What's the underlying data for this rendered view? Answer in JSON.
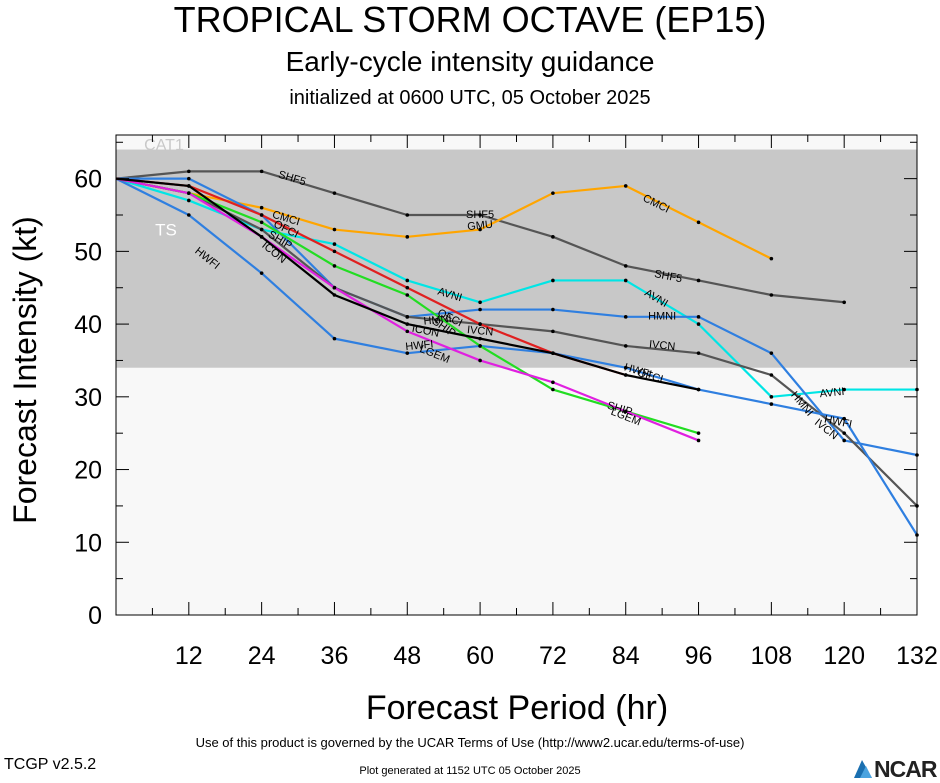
{
  "header": {
    "title": "TROPICAL STORM OCTAVE (EP15)",
    "subtitle": "Early-cycle intensity guidance",
    "init": "initialized at 0600 UTC, 05 October 2025"
  },
  "footer": {
    "terms": "Use of this product is governed by the UCAR Terms of Use (http://www2.ucar.edu/terms-of-use)",
    "version": "TCGP v2.5.2",
    "generated": "Plot generated at 1152 UTC   05 October 2025",
    "logo": "NCAR"
  },
  "colors": {
    "ts_band": "#c8c8c8",
    "plot_bg": "#f8f8f8",
    "CMCI": "#ffa500",
    "SHF5": "#555555",
    "AVNI": "#00e5e5",
    "HMNI": "#2f7fe0",
    "IVCN": "#555555",
    "HWFI": "#2f7fe0",
    "SHIP": "#22dd22",
    "LGEM": "#e020e0",
    "OFCI": "#e02020",
    "ICON": "#000000"
  },
  "chart_data": {
    "type": "line",
    "title": "TROPICAL STORM OCTAVE (EP15)",
    "xlabel": "Forecast Period (hr)",
    "ylabel": "Forecast Intensity (kt)",
    "xlim": [
      0,
      132
    ],
    "ylim": [
      0,
      66
    ],
    "xticks": [
      12,
      24,
      36,
      48,
      60,
      72,
      84,
      96,
      108,
      120,
      132
    ],
    "yticks": [
      0,
      10,
      20,
      30,
      40,
      50,
      60
    ],
    "bands": [
      {
        "label": "TS",
        "from": 34,
        "to": 64
      },
      {
        "label": "CAT1",
        "from": 64,
        "to": 66
      }
    ],
    "series": [
      {
        "name": "SHF5",
        "x": [
          0,
          12,
          24,
          36,
          48,
          60,
          72,
          84,
          96,
          108,
          120
        ],
        "y": [
          60,
          61,
          61,
          58,
          55,
          55,
          52,
          48,
          46,
          44,
          43
        ]
      },
      {
        "name": "CMCI",
        "x": [
          0,
          12,
          24,
          36,
          48,
          60,
          72,
          84,
          96,
          108
        ],
        "y": [
          60,
          58,
          56,
          53,
          52,
          53,
          58,
          59,
          54,
          49
        ]
      },
      {
        "name": "AVNI",
        "x": [
          0,
          12,
          24,
          36,
          48,
          60,
          72,
          84,
          96,
          108,
          120,
          132
        ],
        "y": [
          60,
          57,
          53,
          51,
          46,
          43,
          46,
          46,
          40,
          30,
          31,
          31
        ]
      },
      {
        "name": "HMNI",
        "x": [
          0,
          12,
          24,
          36,
          48,
          60,
          72,
          84,
          96,
          108,
          120,
          132
        ],
        "y": [
          60,
          60,
          55,
          45,
          41,
          42,
          42,
          41,
          41,
          36,
          24,
          22
        ]
      },
      {
        "name": "IVCN",
        "x": [
          0,
          12,
          24,
          36,
          48,
          60,
          72,
          84,
          96,
          108,
          120,
          132
        ],
        "y": [
          60,
          58,
          53,
          45,
          41,
          40,
          39,
          37,
          36,
          33,
          25,
          15
        ]
      },
      {
        "name": "HWFI",
        "x": [
          0,
          12,
          24,
          36,
          48,
          60,
          72,
          84,
          96,
          108,
          120,
          132
        ],
        "y": [
          60,
          55,
          47,
          38,
          36,
          37,
          36,
          34,
          31,
          29,
          27,
          11
        ]
      },
      {
        "name": "SHIP",
        "x": [
          0,
          12,
          24,
          36,
          48,
          60,
          72,
          84,
          96
        ],
        "y": [
          60,
          58,
          54,
          48,
          44,
          37,
          31,
          28,
          25
        ]
      },
      {
        "name": "LGEM",
        "x": [
          0,
          12,
          24,
          36,
          48,
          60,
          72,
          84,
          96
        ],
        "y": [
          60,
          58,
          52,
          45,
          39,
          35,
          32,
          28,
          24
        ]
      },
      {
        "name": "OFCI",
        "x": [
          0,
          12,
          24,
          36,
          48,
          60,
          72,
          84
        ],
        "y": [
          60,
          59,
          55,
          50,
          45,
          40,
          36,
          33
        ]
      },
      {
        "name": "ICON",
        "x": [
          0,
          12,
          24,
          36,
          48,
          60,
          72,
          84,
          96
        ],
        "y": [
          60,
          59,
          52,
          44,
          40,
          38,
          36,
          33,
          31
        ]
      }
    ],
    "labels": [
      {
        "text": "SHF5",
        "x": 29,
        "y": 60,
        "series": "SHF5"
      },
      {
        "text": "SHF5",
        "x": 60,
        "y": 55,
        "series": "SHF5"
      },
      {
        "text": "SHF5",
        "x": 91,
        "y": 46.5,
        "series": "SHF5"
      },
      {
        "text": "CMCI",
        "x": 28,
        "y": 54.5,
        "series": "CMCI"
      },
      {
        "text": "CMCI",
        "x": 89,
        "y": 56.5,
        "series": "CMCI"
      },
      {
        "text": "GMU",
        "x": 60,
        "y": 53.5,
        "series": "CMCI"
      },
      {
        "text": "AVNI",
        "x": 55,
        "y": 44,
        "series": "AVNI"
      },
      {
        "text": "AVNI",
        "x": 89,
        "y": 43.5,
        "series": "AVNI"
      },
      {
        "text": "AVNI",
        "x": 118,
        "y": 30.5,
        "series": "AVNI"
      },
      {
        "text": "HMNI",
        "x": 90,
        "y": 41,
        "series": "HMNI"
      },
      {
        "text": "HMNI",
        "x": 113,
        "y": 29,
        "series": "HMNI"
      },
      {
        "text": "IVCN",
        "x": 60,
        "y": 39,
        "series": "IVCN"
      },
      {
        "text": "IVCN",
        "x": 90,
        "y": 37,
        "series": "IVCN"
      },
      {
        "text": "IVCN",
        "x": 117,
        "y": 25.5,
        "series": "IVCN"
      },
      {
        "text": "HWFI",
        "x": 15,
        "y": 49,
        "series": "HWFI"
      },
      {
        "text": "HWFI",
        "x": 86,
        "y": 33.5,
        "series": "HWFI"
      },
      {
        "text": "HWFI",
        "x": 119,
        "y": 26.5,
        "series": "HWFI"
      },
      {
        "text": "HWFI",
        "x": 50,
        "y": 37,
        "series": "HWFI"
      },
      {
        "text": "OFCI",
        "x": 88,
        "y": 32.8,
        "series": "OFCI"
      },
      {
        "text": "ICON",
        "x": 51,
        "y": 39,
        "series": "ICON"
      },
      {
        "text": "LGEM",
        "x": 52.5,
        "y": 35.8,
        "series": "LGEM"
      },
      {
        "text": "SHIP",
        "x": 83,
        "y": 28.3,
        "series": "SHIP"
      },
      {
        "text": "LGEM",
        "x": 84,
        "y": 27.2,
        "series": "LGEM"
      },
      {
        "text": "OFCI",
        "x": 28,
        "y": 53,
        "series": "OFCI"
      },
      {
        "text": "SHIP",
        "x": 27,
        "y": 51.5,
        "series": "SHIP"
      },
      {
        "text": "ICON",
        "x": 26,
        "y": 49.8,
        "series": "ICON"
      },
      {
        "text": "HMNI",
        "x": 53,
        "y": 40.5,
        "series": "HMNI"
      },
      {
        "text": "SHIP",
        "x": 54,
        "y": 39.5,
        "series": "SHIP"
      },
      {
        "text": "OFCI",
        "x": 55,
        "y": 40.8,
        "series": "OFCI"
      }
    ]
  }
}
